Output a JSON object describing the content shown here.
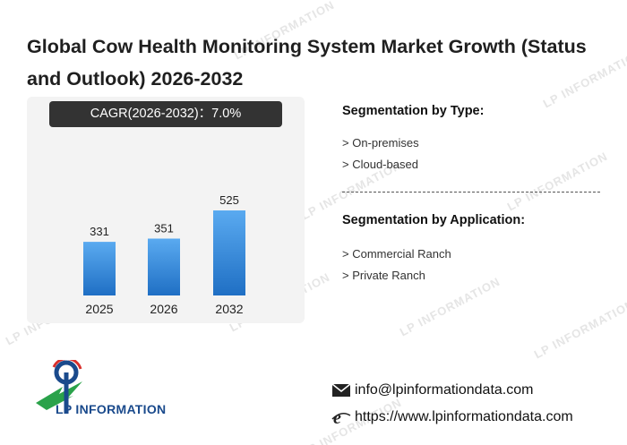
{
  "title": "Global Cow Health Monitoring System Market Growth (Status and Outlook) 2026-2032",
  "cagr_label": "CAGR(2026-2032)：7.0%",
  "chart_data": {
    "type": "bar",
    "categories": [
      "2025",
      "2026",
      "2032"
    ],
    "values": [
      331,
      351,
      525
    ],
    "title": "",
    "xlabel": "",
    "ylabel": "",
    "ylim": [
      0,
      600
    ],
    "grid": false,
    "bar_color_top": "#5aaaf0",
    "bar_color_bottom": "#1f6fc4"
  },
  "segmentation_type": {
    "heading": "Segmentation by Type:",
    "items": [
      "> On-premises",
      "> Cloud-based"
    ]
  },
  "segmentation_application": {
    "heading": "Segmentation by Application:",
    "items": [
      "> Commercial Ranch",
      "> Private Ranch"
    ]
  },
  "logo": {
    "text": "LP INFORMATION",
    "icon": "lp-information-logo"
  },
  "watermark": "LP INFORMATION",
  "contact": {
    "email": "info@lpinformationdata.com",
    "website": "https://www.lpinformationdata.com",
    "email_icon": "envelope-icon",
    "website_icon": "globe-e-icon"
  }
}
